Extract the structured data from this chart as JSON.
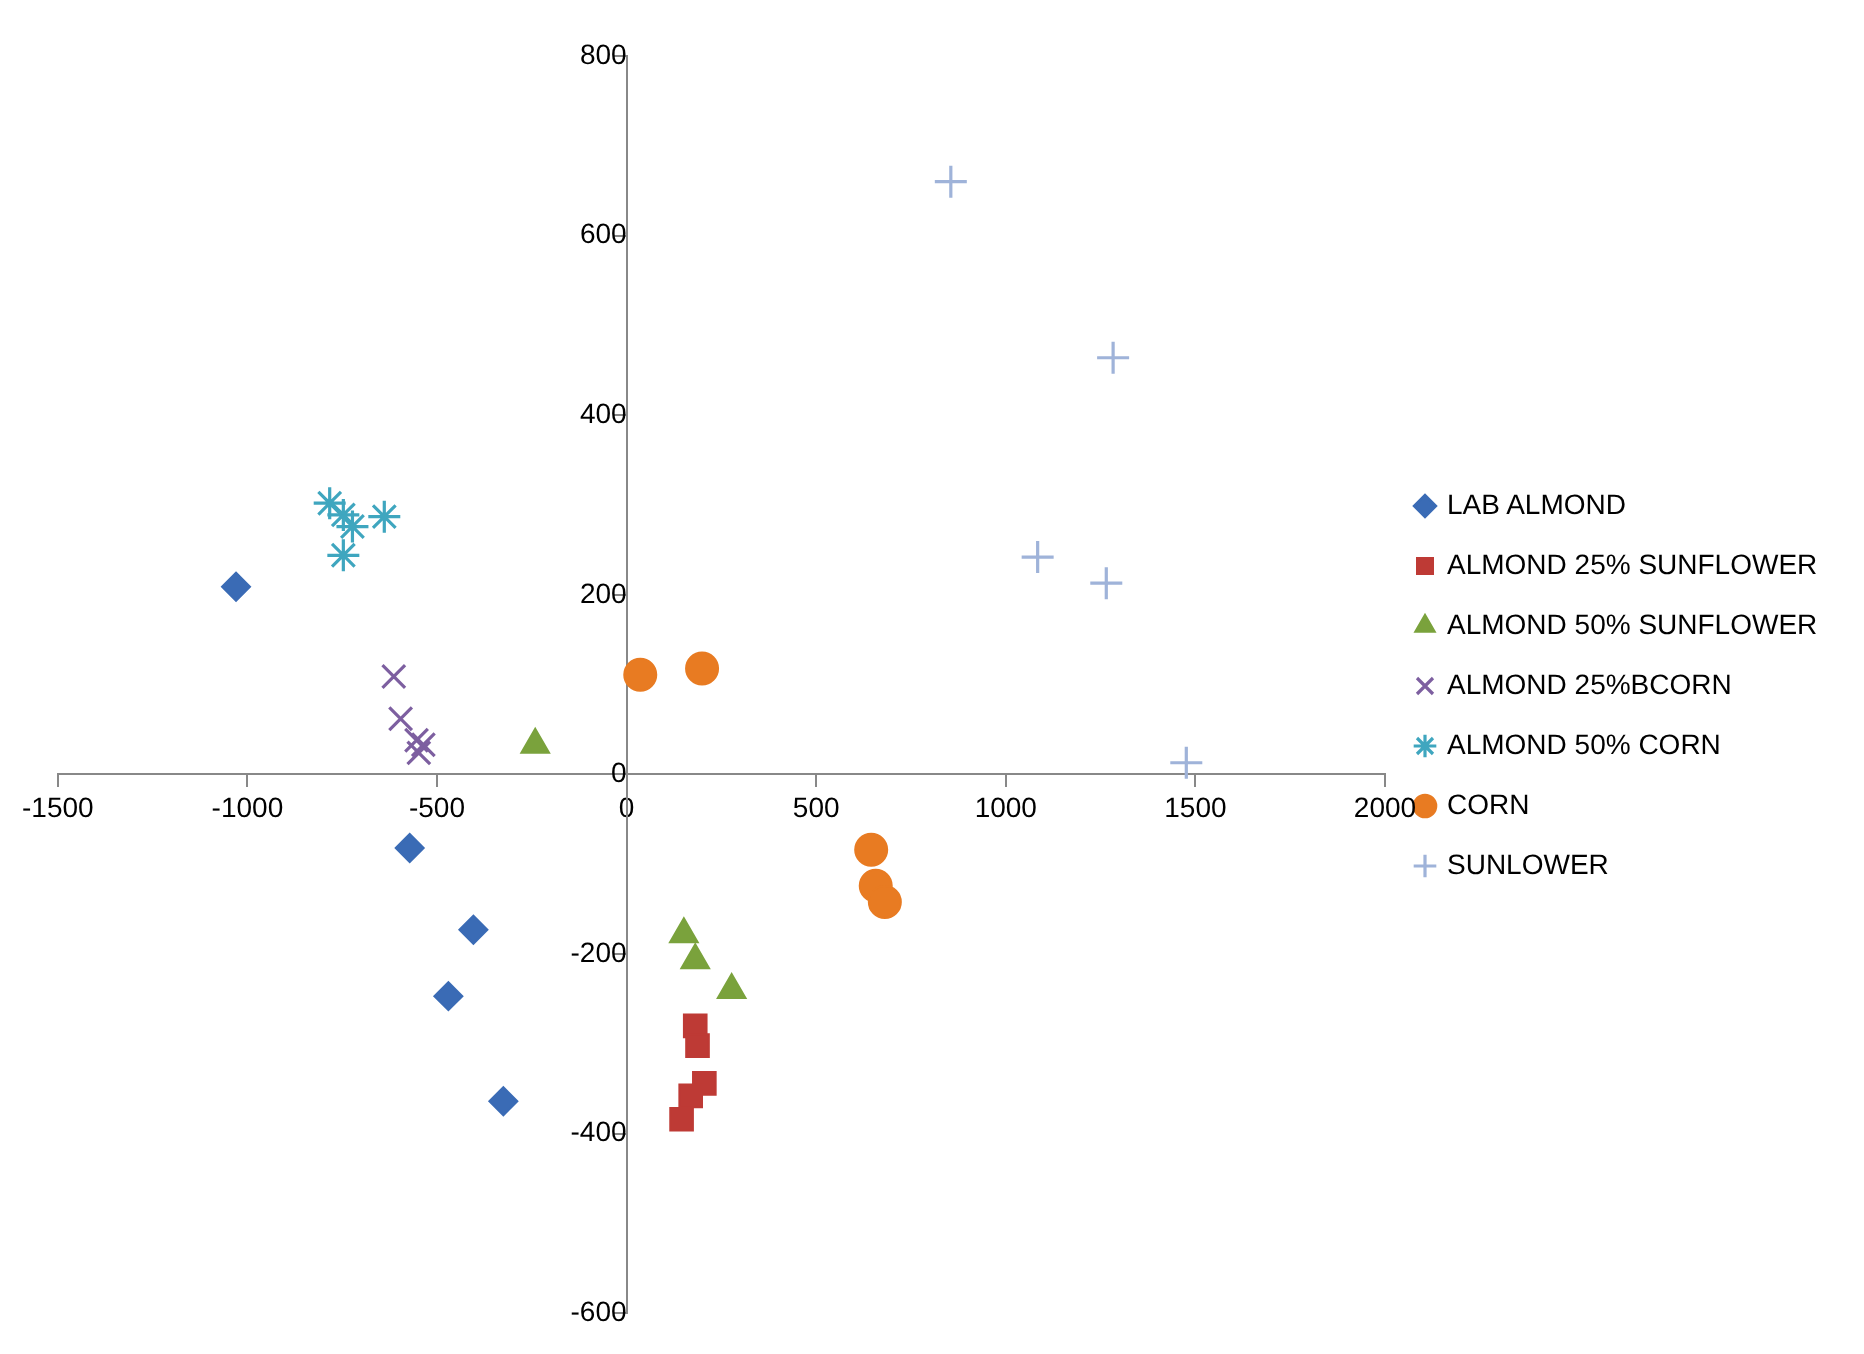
{
  "chart_data": {
    "type": "scatter",
    "legend": "right",
    "grid": false,
    "xlim": [
      -1500,
      2000
    ],
    "xticks": [
      -1500,
      -1000,
      -500,
      0,
      500,
      1000,
      1500,
      2000
    ],
    "ylim": [
      -600,
      800
    ],
    "yticks": [
      -600,
      -400,
      -200,
      0,
      200,
      400,
      600,
      800
    ],
    "series": [
      {
        "name": "LAB ALMOND",
        "color": "#3a6bb5",
        "marker": "diamond",
        "x": [
          -1030,
          -572,
          -404,
          -470,
          -325
        ],
        "values": [
          209,
          -82,
          -173,
          -247,
          -364
        ]
      },
      {
        "name": "ALMOND 25% SUNFLOWER",
        "color": "#be3a35",
        "marker": "square",
        "x": [
          181,
          187,
          205,
          169,
          145
        ],
        "values": [
          -280,
          -302,
          -344,
          -358,
          -384
        ]
      },
      {
        "name": "ALMOND 50% SUNFLOWER",
        "color": "#7aa23c",
        "marker": "triangle",
        "x": [
          151,
          181,
          277,
          -241
        ],
        "values": [
          -178,
          -207,
          -240,
          33
        ]
      },
      {
        "name": "ALMOND 25%BCORN",
        "color": "#7d5fa0",
        "marker": "cross",
        "x": [
          -614,
          -596,
          -554,
          -548,
          -536
        ],
        "values": [
          109,
          62,
          38,
          24,
          33
        ]
      },
      {
        "name": "ALMOND 50% CORN",
        "color": "#3fa6bf",
        "marker": "cross",
        "x": [
          -783,
          -747,
          -723,
          -639,
          -747
        ],
        "values": [
          302,
          289,
          276,
          287,
          244
        ]
      },
      {
        "name": "CORN",
        "color": "#e87b22",
        "marker": "circle",
        "x": [
          36,
          199,
          645,
          657,
          681
        ],
        "values": [
          111,
          118,
          -84,
          -124,
          -142
        ]
      },
      {
        "name": "SUNLOWER",
        "color": "#9fb3d9",
        "marker": "cross",
        "x": [
          855,
          1283,
          1084,
          1265,
          1476
        ],
        "values": [
          660,
          464,
          242,
          213,
          13
        ]
      }
    ]
  }
}
